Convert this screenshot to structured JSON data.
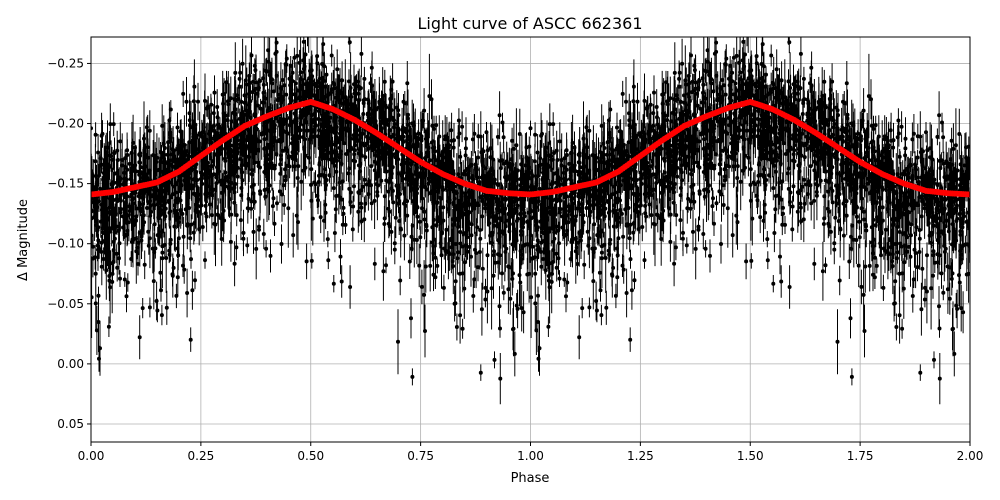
{
  "chart_data": {
    "type": "scatter",
    "title": "Light curve of ASCC 662361",
    "xlabel": "Phase",
    "ylabel": "Δ Magnitude",
    "xlim": [
      0,
      2
    ],
    "ylim": [
      0.065,
      -0.272
    ],
    "y_inverted": true,
    "grid": true,
    "xticks": [
      "0.00",
      "0.25",
      "0.50",
      "0.75",
      "1.00",
      "1.25",
      "1.50",
      "1.75",
      "2.00"
    ],
    "xtick_values": [
      0,
      0.25,
      0.5,
      0.75,
      1,
      1.25,
      1.5,
      1.75,
      2
    ],
    "yticks": [
      "−0.25",
      "−0.20",
      "−0.15",
      "−0.10",
      "−0.05",
      "0.00",
      "0.05"
    ],
    "ytick_values": [
      -0.25,
      -0.2,
      -0.15,
      -0.1,
      -0.05,
      0,
      0.05
    ],
    "colors": {
      "points": "#000000",
      "binned": "#ff0000",
      "grid": "#b0b0b0"
    },
    "series": [
      {
        "kind": "binned-mean",
        "color": "#ff0000",
        "x": [
          0,
          0.05,
          0.1,
          0.15,
          0.2,
          0.25,
          0.3,
          0.35,
          0.4,
          0.45,
          0.5,
          0.55,
          0.6,
          0.65,
          0.7,
          0.75,
          0.8,
          0.85,
          0.9,
          0.95,
          1.0,
          1.05,
          1.1,
          1.15,
          1.2,
          1.25,
          1.3,
          1.35,
          1.4,
          1.45,
          1.5,
          1.55,
          1.6,
          1.65,
          1.7,
          1.75,
          1.8,
          1.85,
          1.9,
          1.95,
          2.0
        ],
        "y": [
          -0.141,
          -0.143,
          -0.147,
          -0.151,
          -0.16,
          -0.173,
          -0.186,
          -0.198,
          -0.206,
          -0.213,
          -0.218,
          -0.212,
          -0.203,
          -0.192,
          -0.18,
          -0.168,
          -0.158,
          -0.15,
          -0.144,
          -0.142,
          -0.141,
          -0.143,
          -0.147,
          -0.151,
          -0.16,
          -0.173,
          -0.186,
          -0.198,
          -0.206,
          -0.213,
          -0.218,
          -0.212,
          -0.203,
          -0.192,
          -0.18,
          -0.168,
          -0.158,
          -0.15,
          -0.144,
          -0.142,
          -0.141
        ]
      },
      {
        "kind": "observations-with-errorbars",
        "color": "#000000"
      }
    ]
  }
}
